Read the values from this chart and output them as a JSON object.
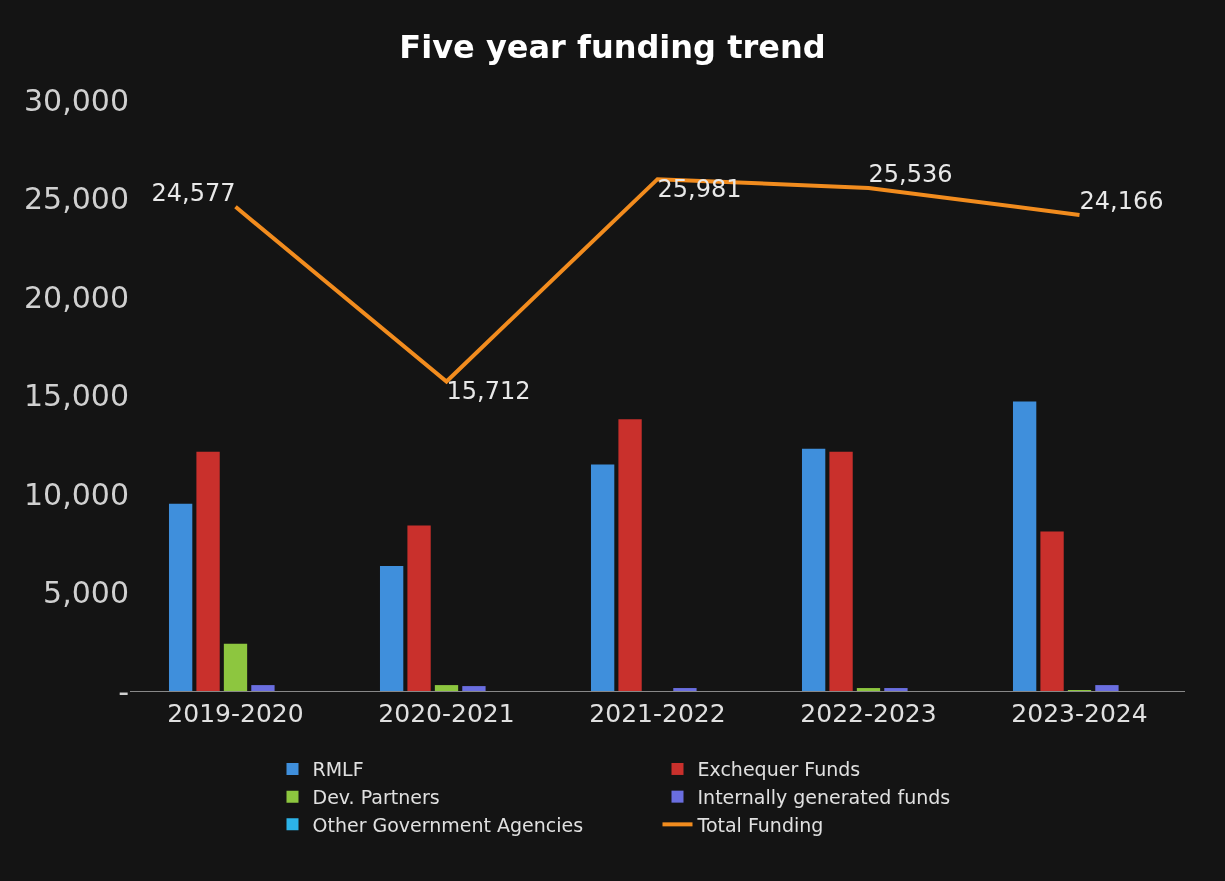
{
  "chart_data": {
    "type": "bar",
    "title": "Five year funding trend",
    "categories": [
      "2019-2020",
      "2020-2021",
      "2021-2022",
      "2022-2023",
      "2023-2024"
    ],
    "series": [
      {
        "name": "RMLF",
        "color": "#3f8fdc",
        "values": [
          9500,
          6350,
          11500,
          12300,
          14700
        ]
      },
      {
        "name": "Exchequer Funds",
        "color": "#c9302c",
        "values": [
          12150,
          8400,
          13800,
          12150,
          8100
        ]
      },
      {
        "name": "Dev. Partners",
        "color": "#8dc63f",
        "values": [
          2400,
          300,
          null,
          150,
          50
        ]
      },
      {
        "name": "Internally generated funds",
        "color": "#6a6ee0",
        "values": [
          300,
          250,
          150,
          150,
          300
        ]
      },
      {
        "name": "Other Government Agencies",
        "color": "#2cb3e8",
        "values": [
          null,
          null,
          null,
          null,
          null
        ]
      },
      {
        "name": "Total Funding",
        "type": "line",
        "color": "#f28c1e",
        "values": [
          24577,
          15712,
          25981,
          25536,
          24166
        ],
        "value_labels": [
          "24,577",
          "15,712",
          "25,981",
          "25,536",
          "24,166"
        ]
      }
    ],
    "ylim": [
      0,
      30000
    ],
    "yticks": [
      {
        "value": 0,
        "label": "-"
      },
      {
        "value": 5000,
        "label": "5,000"
      },
      {
        "value": 10000,
        "label": "10,000"
      },
      {
        "value": 15000,
        "label": "15,000"
      },
      {
        "value": 20000,
        "label": "20,000"
      },
      {
        "value": 25000,
        "label": "25,000"
      },
      {
        "value": 30000,
        "label": "30,000"
      }
    ],
    "grid": false,
    "legend": "bottom",
    "marker": "none",
    "line_style": "solid"
  }
}
